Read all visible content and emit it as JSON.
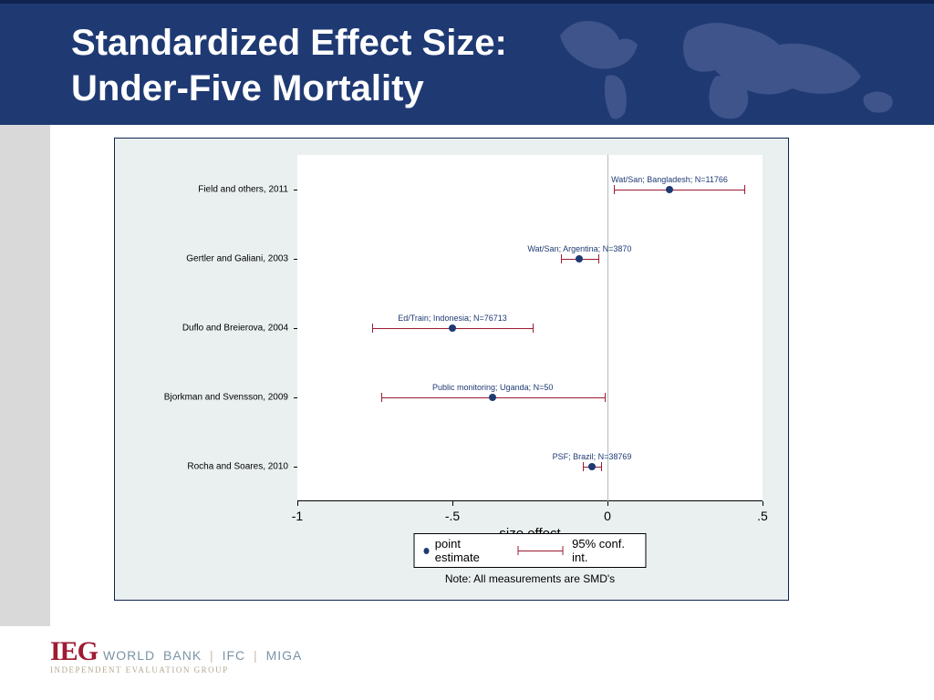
{
  "header": {
    "title_line1": "Standardized Effect Size:",
    "title_line2": "Under-Five Mortality",
    "bg_color": "#1f3a73",
    "map_color": "#586a9e"
  },
  "chart": {
    "type": "forest",
    "outer_bg": "#eaf0f0",
    "outer_border": "#0f2350",
    "plot_bg": "#ffffff",
    "x_title": "size effect",
    "x_min": -1.0,
    "x_max": 0.5,
    "x_ticks": [
      {
        "value": -1.0,
        "label": "-1"
      },
      {
        "value": -0.5,
        "label": "-.5"
      },
      {
        "value": 0.0,
        "label": "0"
      },
      {
        "value": 0.5,
        "label": ".5"
      }
    ],
    "x_tick_fontsize": 14,
    "x_title_fontsize": 15,
    "zero_line_color": "#a9c0c0",
    "ci_color": "#9e1b32",
    "point_color": "#1f3a73",
    "y_label_fontsize": 10,
    "annotation_fontsize": 9,
    "annotation_color": "#1f3a73",
    "legend_point_label": "point estimate",
    "legend_ci_label": "95% conf. int.",
    "note": "Note: All measurements are SMD's",
    "studies": [
      {
        "label": "Field and others, 2011",
        "annotation": "Wat/San; Bangladesh; N=11766",
        "point": 0.2,
        "ci_low": 0.02,
        "ci_high": 0.44
      },
      {
        "label": "Gertler and Galiani, 2003",
        "annotation": "Wat/San; Argentina; N=3870",
        "point": -0.09,
        "ci_low": -0.15,
        "ci_high": -0.03
      },
      {
        "label": "Duflo and Breierova, 2004",
        "annotation": "Ed/Train; Indonesia; N=76713",
        "point": -0.5,
        "ci_low": -0.76,
        "ci_high": -0.24
      },
      {
        "label": "Bjorkman and Svensson, 2009",
        "annotation": "Public monitoring; Uganda; N=50",
        "point": -0.37,
        "ci_low": -0.73,
        "ci_high": -0.01
      },
      {
        "label": "Rocha and Soares, 2010",
        "annotation": "PSF; Brazil; N=38769",
        "point": -0.05,
        "ci_low": -0.08,
        "ci_high": -0.02
      }
    ]
  },
  "footer": {
    "logo_mark": "IEG",
    "logo_tail_1": "WORLD BANK",
    "logo_tail_2": "IFC",
    "logo_tail_3": "MIGA",
    "logo_sub": "INDEPENDENT EVALUATION GROUP",
    "mark_color": "#9e1b32",
    "tail_color": "#7b94a6",
    "sub_color": "#b6a98e"
  }
}
